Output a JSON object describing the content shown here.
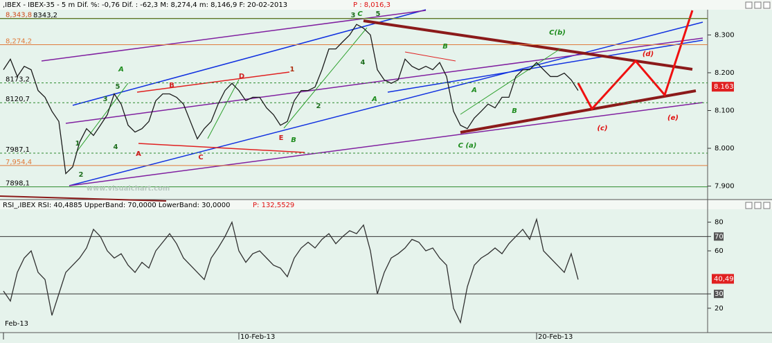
{
  "chart_data": [
    {
      "type": "line",
      "title": ",IBEX - IBEX-35 - 5 m Dif. %: -0,76 Dif. : -62,3 M: 8,274,4 m: 8,146,9 F: 20-02-2013",
      "title_price": "P : 8,016,3",
      "categories": [
        "Feb-13",
        null,
        null,
        null,
        null,
        null,
        null,
        null,
        null,
        null,
        null,
        null,
        null,
        null,
        null,
        null,
        null,
        null,
        null,
        null,
        null,
        null,
        null,
        null,
        null,
        null,
        null,
        null,
        null,
        null,
        null,
        null,
        null,
        null,
        "10-Feb-13",
        null,
        null,
        null,
        null,
        null,
        null,
        null,
        null,
        null,
        null,
        null,
        null,
        null,
        null,
        null,
        null,
        null,
        null,
        null,
        null,
        null,
        null,
        null,
        null,
        null,
        null,
        null,
        null,
        null,
        null,
        null,
        null,
        null,
        null,
        null,
        null,
        null,
        null,
        null,
        null,
        null,
        null,
        "20-Feb-13",
        null,
        null,
        null,
        null,
        null,
        null
      ],
      "series": [
        {
          "name": "IBEX-35",
          "color": "#1a1a1a",
          "values": [
            8208,
            8236,
            8190,
            8217,
            8208,
            8153,
            8135,
            8098,
            8071,
            7933,
            7951,
            8016,
            8052,
            8034,
            8061,
            8089,
            8144,
            8117,
            8061,
            8043,
            8052,
            8071,
            8126,
            8144,
            8144,
            8135,
            8117,
            8071,
            8025,
            8052,
            8071,
            8117,
            8153,
            8172,
            8153,
            8126,
            8135,
            8135,
            8107,
            8089,
            8061,
            8071,
            8126,
            8153,
            8153,
            8162,
            8208,
            8263,
            8263,
            8282,
            8300,
            8328,
            8318,
            8300,
            8208,
            8181,
            8172,
            8181,
            8236,
            8217,
            8208,
            8217,
            8208,
            8227,
            8190,
            8098,
            8061,
            8052,
            8080,
            8098,
            8117,
            8107,
            8135,
            8135,
            8190,
            8208,
            8208,
            8227,
            8208,
            8190,
            8190,
            8199,
            8181,
            8153
          ]
        }
      ],
      "ylim": [
        7868,
        8365
      ],
      "yticks": [
        {
          "value": 7900,
          "label": "7.900"
        },
        {
          "value": 8000,
          "label": "8.000"
        },
        {
          "value": 8100,
          "label": "8.100"
        },
        {
          "value": 8200,
          "label": "8.200"
        },
        {
          "value": 8300,
          "label": "8.300"
        }
      ],
      "last": {
        "value": 8163,
        "label": "8.163"
      },
      "levels": [
        {
          "value": 8343.8,
          "label": "8,343,8",
          "color": "#d04a1a",
          "style": "solid"
        },
        {
          "value": 8343.2,
          "label": "8343,2",
          "color": "#2c8a2c",
          "style": "solid"
        },
        {
          "value": 8274.2,
          "label": "8,274,2",
          "color": "#e07a3a",
          "style": "solid"
        },
        {
          "value": 8173.2,
          "label": "8173,2",
          "color": "#2c8a2c",
          "style": "dashed"
        },
        {
          "value": 8120.7,
          "label": "8120,7",
          "color": "#2c8a2c",
          "style": "dashed"
        },
        {
          "value": 7987.1,
          "label": "7987,1",
          "color": "#2c8a2c",
          "style": "dashed"
        },
        {
          "value": 7954.4,
          "label": "7,954,4",
          "color": "#e07a3a",
          "style": "solid"
        },
        {
          "value": 7898.1,
          "label": "7898,1",
          "color": "#2c8a2c",
          "style": "solid"
        }
      ],
      "annotations": [
        {
          "text": "A",
          "color": "#1e8c1e"
        },
        {
          "text": "C",
          "color": "#1e8c1e"
        },
        {
          "text": "B",
          "color": "#1e8c1e"
        },
        {
          "text": "C(b)",
          "color": "#1e8c1e"
        },
        {
          "text": "A",
          "color": "#1e8c1e"
        },
        {
          "text": "A",
          "color": "#1e8c1e"
        },
        {
          "text": "B",
          "color": "#1e8c1e"
        },
        {
          "text": "B",
          "color": "#1e8c1e"
        },
        {
          "text": "C (a)",
          "color": "#1e8c1e"
        },
        {
          "text": "3",
          "color": "#1e6e1e"
        },
        {
          "text": "5",
          "color": "#1e6e1e"
        },
        {
          "text": "4",
          "color": "#1e6e1e"
        },
        {
          "text": "2",
          "color": "#1e6e1e"
        },
        {
          "text": "5",
          "color": "#1e6e1e"
        },
        {
          "text": "3",
          "color": "#1e6e1e"
        },
        {
          "text": "1",
          "color": "#1e6e1e"
        },
        {
          "text": "4",
          "color": "#1e6e1e"
        },
        {
          "text": "2",
          "color": "#1e6e1e"
        },
        {
          "text": "B",
          "color": "#d02020"
        },
        {
          "text": "D",
          "color": "#d02020"
        },
        {
          "text": "A",
          "color": "#d02020"
        },
        {
          "text": "C",
          "color": "#d02020"
        },
        {
          "text": "E",
          "color": "#d02020"
        },
        {
          "text": "1",
          "color": "#b03010"
        },
        {
          "text": "(d)",
          "color": "#e01010"
        },
        {
          "text": "(c)",
          "color": "#e01010"
        },
        {
          "text": "(e)",
          "color": "#e01010"
        },
        {
          "text": "www.visualchart.com",
          "color": "#b8c8c0"
        }
      ]
    },
    {
      "type": "line",
      "title": "RSI_,IBEX RSI: 40,4885 UpperBand: 70,0000 LowerBand: 30,0000",
      "title_price": "P: 132,5529",
      "series": [
        {
          "name": "RSI",
          "color": "#303030",
          "values": [
            32,
            25,
            45,
            55,
            60,
            45,
            40,
            15,
            30,
            45,
            50,
            55,
            62,
            75,
            70,
            60,
            55,
            58,
            50,
            45,
            52,
            48,
            60,
            66,
            72,
            65,
            55,
            50,
            45,
            40,
            55,
            62,
            70,
            80,
            60,
            52,
            58,
            60,
            55,
            50,
            48,
            42,
            55,
            62,
            66,
            62,
            68,
            72,
            65,
            70,
            74,
            72,
            78,
            60,
            30,
            45,
            55,
            58,
            62,
            68,
            66,
            60,
            62,
            55,
            50,
            20,
            10,
            35,
            50,
            55,
            58,
            62,
            58,
            65,
            70,
            75,
            68,
            82,
            60,
            55,
            50,
            45,
            58,
            40
          ]
        }
      ],
      "ylim": [
        3,
        89
      ],
      "yticks": [
        20,
        30,
        60,
        70,
        80
      ],
      "bands": [
        70,
        30
      ],
      "last": {
        "value": 40.49,
        "label": "40,49"
      }
    }
  ]
}
